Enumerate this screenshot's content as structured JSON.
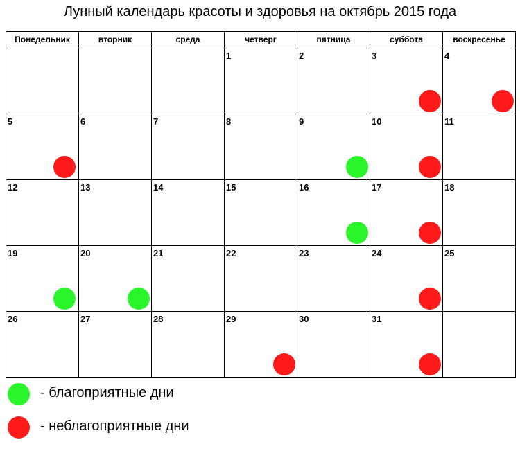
{
  "title": "Лунный календарь красоты и здоровья на октябрь 2015 года",
  "weekdays": [
    "Понедельник",
    "вторник",
    "среда",
    "четверг",
    "пятница",
    "суббота",
    "воскресенье"
  ],
  "calendar": {
    "weeks": [
      [
        {
          "day": null,
          "color": null
        },
        {
          "day": null,
          "color": null
        },
        {
          "day": null,
          "color": null
        },
        {
          "day": 1,
          "color": null
        },
        {
          "day": 2,
          "color": null
        },
        {
          "day": 3,
          "color": "#ff1a1a"
        },
        {
          "day": 4,
          "color": "#ff1a1a"
        }
      ],
      [
        {
          "day": 5,
          "color": "#ff1a1a"
        },
        {
          "day": 6,
          "color": null
        },
        {
          "day": 7,
          "color": null
        },
        {
          "day": 8,
          "color": null
        },
        {
          "day": 9,
          "color": "#2af52a"
        },
        {
          "day": 10,
          "color": "#ff1a1a"
        },
        {
          "day": 11,
          "color": null
        }
      ],
      [
        {
          "day": 12,
          "color": null
        },
        {
          "day": 13,
          "color": null
        },
        {
          "day": 14,
          "color": null
        },
        {
          "day": 15,
          "color": null
        },
        {
          "day": 16,
          "color": "#2af52a"
        },
        {
          "day": 17,
          "color": "#ff1a1a"
        },
        {
          "day": 18,
          "color": null
        }
      ],
      [
        {
          "day": 19,
          "color": "#2af52a"
        },
        {
          "day": 20,
          "color": "#2af52a"
        },
        {
          "day": 21,
          "color": null
        },
        {
          "day": 22,
          "color": null
        },
        {
          "day": 23,
          "color": null
        },
        {
          "day": 24,
          "color": "#ff1a1a"
        },
        {
          "day": 25,
          "color": null
        }
      ],
      [
        {
          "day": 26,
          "color": null
        },
        {
          "day": 27,
          "color": null
        },
        {
          "day": 28,
          "color": null
        },
        {
          "day": 29,
          "color": "#ff1a1a"
        },
        {
          "day": 30,
          "color": null
        },
        {
          "day": 31,
          "color": "#ff1a1a"
        },
        {
          "day": null,
          "color": null
        }
      ]
    ]
  },
  "legend": [
    {
      "color": "#2af52a",
      "label": "- благоприятные дни"
    },
    {
      "color": "#ff1a1a",
      "label": "- неблагоприятные дни"
    }
  ]
}
